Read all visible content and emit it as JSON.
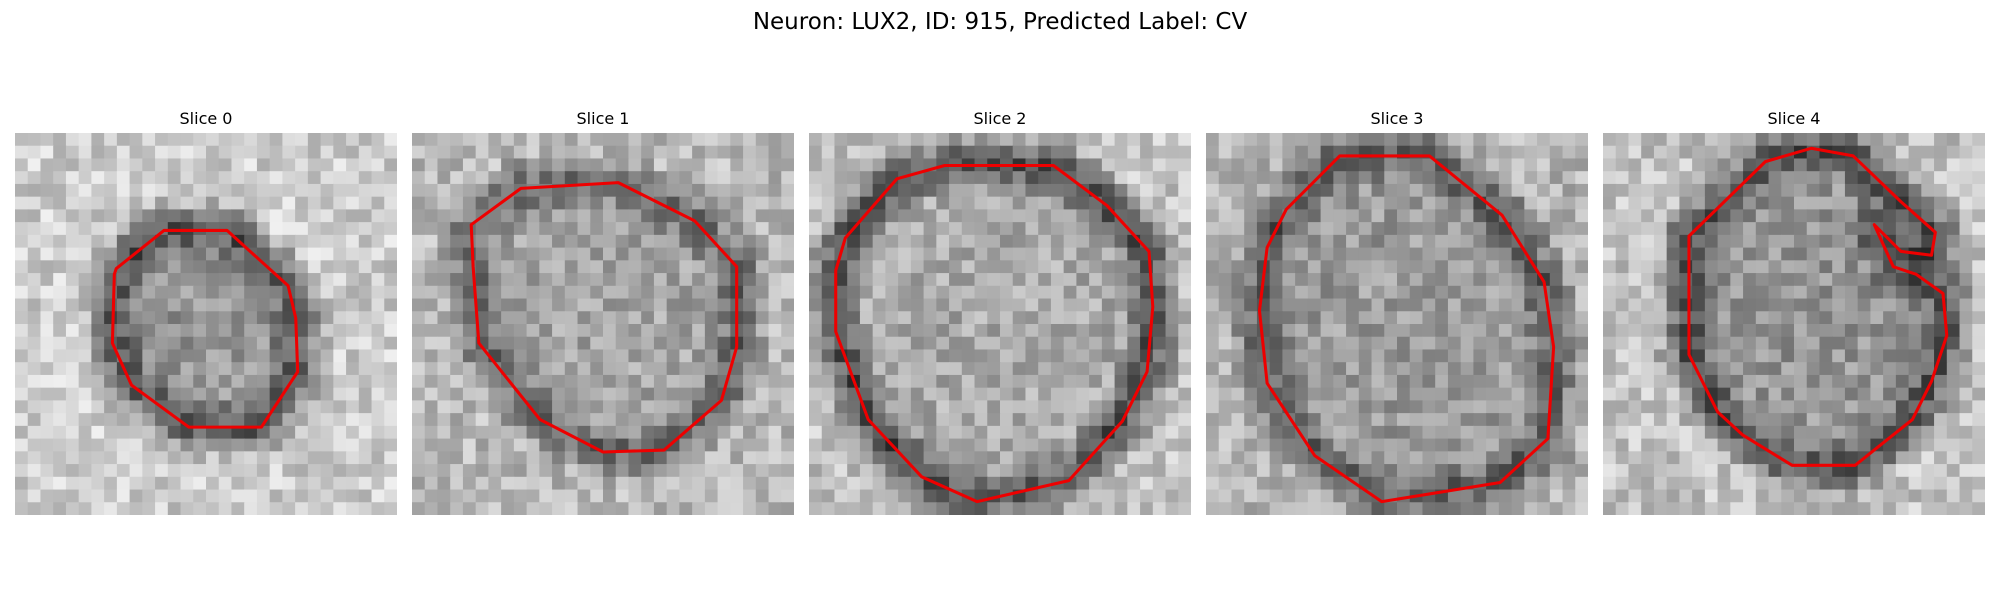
{
  "figure": {
    "title": "Neuron: LUX2, ID: 915, Predicted Label: CV"
  },
  "panels": [
    {
      "title": "Slice 0",
      "seed": 11,
      "core": 150,
      "ring": 75,
      "outer": 205,
      "contour": [
        [
          0.265,
          0.355
        ],
        [
          0.39,
          0.255
        ],
        [
          0.555,
          0.255
        ],
        [
          0.715,
          0.4
        ],
        [
          0.735,
          0.485
        ],
        [
          0.74,
          0.625
        ],
        [
          0.645,
          0.77
        ],
        [
          0.455,
          0.77
        ],
        [
          0.305,
          0.66
        ],
        [
          0.255,
          0.55
        ],
        [
          0.26,
          0.37
        ]
      ]
    },
    {
      "title": "Slice 1",
      "seed": 23,
      "core": 165,
      "ring": 95,
      "outer": 185,
      "contour": [
        [
          0.155,
          0.24
        ],
        [
          0.285,
          0.145
        ],
        [
          0.54,
          0.13
        ],
        [
          0.74,
          0.23
        ],
        [
          0.85,
          0.35
        ],
        [
          0.85,
          0.56
        ],
        [
          0.81,
          0.7
        ],
        [
          0.66,
          0.83
        ],
        [
          0.5,
          0.835
        ],
        [
          0.335,
          0.75
        ],
        [
          0.175,
          0.55
        ],
        [
          0.16,
          0.35
        ]
      ]
    },
    {
      "title": "Slice 2",
      "seed": 37,
      "core": 170,
      "ring": 70,
      "outer": 195,
      "contour": [
        [
          0.095,
          0.275
        ],
        [
          0.23,
          0.12
        ],
        [
          0.355,
          0.085
        ],
        [
          0.64,
          0.085
        ],
        [
          0.78,
          0.19
        ],
        [
          0.89,
          0.31
        ],
        [
          0.9,
          0.455
        ],
        [
          0.885,
          0.625
        ],
        [
          0.82,
          0.755
        ],
        [
          0.68,
          0.91
        ],
        [
          0.44,
          0.965
        ],
        [
          0.295,
          0.9
        ],
        [
          0.155,
          0.75
        ],
        [
          0.07,
          0.52
        ],
        [
          0.07,
          0.36
        ]
      ]
    },
    {
      "title": "Slice 3",
      "seed": 51,
      "core": 155,
      "ring": 85,
      "outer": 180,
      "contour": [
        [
          0.21,
          0.2
        ],
        [
          0.35,
          0.06
        ],
        [
          0.585,
          0.06
        ],
        [
          0.775,
          0.215
        ],
        [
          0.885,
          0.39
        ],
        [
          0.91,
          0.56
        ],
        [
          0.895,
          0.8
        ],
        [
          0.77,
          0.915
        ],
        [
          0.46,
          0.965
        ],
        [
          0.285,
          0.845
        ],
        [
          0.16,
          0.655
        ],
        [
          0.14,
          0.465
        ],
        [
          0.16,
          0.3
        ]
      ]
    },
    {
      "title": "Slice 4",
      "seed": 67,
      "core": 150,
      "ring": 70,
      "outer": 195,
      "contour": [
        [
          0.225,
          0.27
        ],
        [
          0.425,
          0.075
        ],
        [
          0.545,
          0.04
        ],
        [
          0.655,
          0.06
        ],
        [
          0.78,
          0.18
        ],
        [
          0.87,
          0.26
        ],
        [
          0.86,
          0.32
        ],
        [
          0.78,
          0.31
        ],
        [
          0.71,
          0.24
        ],
        [
          0.76,
          0.35
        ],
        [
          0.82,
          0.37
        ],
        [
          0.89,
          0.42
        ],
        [
          0.9,
          0.53
        ],
        [
          0.86,
          0.65
        ],
        [
          0.81,
          0.75
        ],
        [
          0.66,
          0.87
        ],
        [
          0.495,
          0.87
        ],
        [
          0.365,
          0.79
        ],
        [
          0.3,
          0.73
        ],
        [
          0.225,
          0.58
        ]
      ]
    }
  ]
}
